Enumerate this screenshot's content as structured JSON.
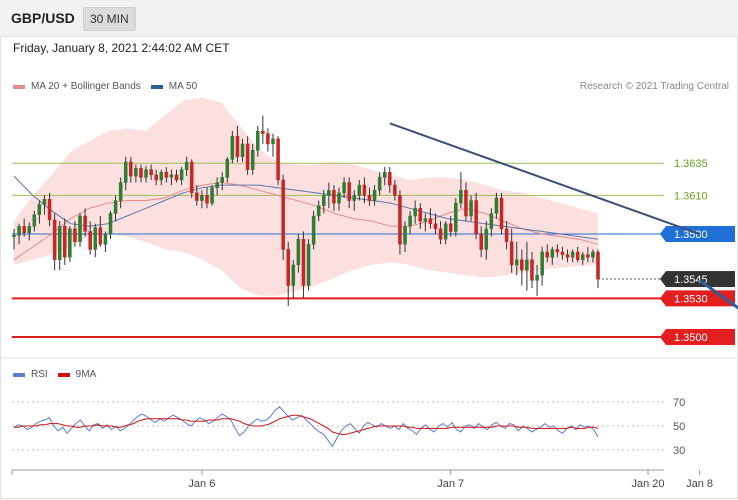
{
  "header": {
    "symbol": "GBP/USD",
    "timeframe": "30 MIN",
    "datetime": "Friday, January 8, 2021 2:44:02 AM CET",
    "copyright": "Research © 2021 Trading Central"
  },
  "legend_price": [
    {
      "label": "MA 20 + Bollinger Bands",
      "color": "#e88a8a"
    },
    {
      "label": "MA 50",
      "color": "#2f5d9b"
    }
  ],
  "legend_rsi": [
    {
      "label": "RSI",
      "color": "#5b7fd6"
    },
    {
      "label": "9MA",
      "color": "#cc1111"
    }
  ],
  "chart_data": [
    {
      "type": "candlestick",
      "panel": "price",
      "ylim": [
        1.3486,
        1.3688
      ],
      "xlim": [
        0,
        140
      ],
      "candles": [
        [
          1.3578,
          1.3584,
          1.3568,
          1.3579
        ],
        [
          1.3579,
          1.3588,
          1.3572,
          1.3586
        ],
        [
          1.3586,
          1.3592,
          1.3578,
          1.3581
        ],
        [
          1.3581,
          1.3589,
          1.3575,
          1.3586
        ],
        [
          1.3586,
          1.3598,
          1.3582,
          1.3595
        ],
        [
          1.3595,
          1.3606,
          1.3588,
          1.3603
        ],
        [
          1.3603,
          1.361,
          1.3595,
          1.3607
        ],
        [
          1.3607,
          1.3612,
          1.3586,
          1.3591
        ],
        [
          1.3591,
          1.3596,
          1.3552,
          1.356
        ],
        [
          1.356,
          1.359,
          1.3552,
          1.3586
        ],
        [
          1.3586,
          1.3592,
          1.3556,
          1.3562
        ],
        [
          1.3562,
          1.3586,
          1.3558,
          1.3584
        ],
        [
          1.3584,
          1.359,
          1.357,
          1.3574
        ],
        [
          1.3574,
          1.3596,
          1.357,
          1.3594
        ],
        [
          1.3594,
          1.36,
          1.3578,
          1.3582
        ],
        [
          1.3582,
          1.359,
          1.3564,
          1.3568
        ],
        [
          1.3568,
          1.3588,
          1.3562,
          1.3585
        ],
        [
          1.3585,
          1.3594,
          1.357,
          1.3572
        ],
        [
          1.3572,
          1.3582,
          1.3566,
          1.358
        ],
        [
          1.358,
          1.3598,
          1.3576,
          1.3596
        ],
        [
          1.3596,
          1.361,
          1.359,
          1.3606
        ],
        [
          1.3606,
          1.3624,
          1.36,
          1.362
        ],
        [
          1.362,
          1.364,
          1.3614,
          1.3636
        ],
        [
          1.3636,
          1.364,
          1.362,
          1.3625
        ],
        [
          1.3625,
          1.3634,
          1.362,
          1.3631
        ],
        [
          1.3631,
          1.3634,
          1.362,
          1.3624
        ],
        [
          1.3624,
          1.3633,
          1.362,
          1.363
        ],
        [
          1.363,
          1.3634,
          1.3622,
          1.3626
        ],
        [
          1.3626,
          1.363,
          1.3618,
          1.3622
        ],
        [
          1.3622,
          1.363,
          1.3618,
          1.3628
        ],
        [
          1.3628,
          1.3632,
          1.362,
          1.3624
        ],
        [
          1.3624,
          1.363,
          1.3618,
          1.3626
        ],
        [
          1.3626,
          1.363,
          1.362,
          1.3622
        ],
        [
          1.3622,
          1.3632,
          1.3618,
          1.363
        ],
        [
          1.363,
          1.364,
          1.3625,
          1.3636
        ],
        [
          1.3636,
          1.3638,
          1.3608,
          1.3612
        ],
        [
          1.3612,
          1.3618,
          1.3602,
          1.3606
        ],
        [
          1.3606,
          1.3614,
          1.36,
          1.361
        ],
        [
          1.361,
          1.3616,
          1.36,
          1.3604
        ],
        [
          1.3604,
          1.3618,
          1.3602,
          1.3616
        ],
        [
          1.3616,
          1.3624,
          1.361,
          1.362
        ],
        [
          1.362,
          1.3628,
          1.3614,
          1.3624
        ],
        [
          1.3624,
          1.364,
          1.362,
          1.3638
        ],
        [
          1.3638,
          1.366,
          1.3635,
          1.3656
        ],
        [
          1.3656,
          1.3664,
          1.3636,
          1.364
        ],
        [
          1.364,
          1.3654,
          1.3636,
          1.365
        ],
        [
          1.365,
          1.3656,
          1.3626,
          1.363
        ],
        [
          1.363,
          1.365,
          1.3626,
          1.3645
        ],
        [
          1.3645,
          1.3664,
          1.364,
          1.366
        ],
        [
          1.366,
          1.3672,
          1.365,
          1.3658
        ],
        [
          1.3658,
          1.3662,
          1.3644,
          1.365
        ],
        [
          1.365,
          1.3658,
          1.364,
          1.3654
        ],
        [
          1.3654,
          1.3656,
          1.3618,
          1.3622
        ],
        [
          1.3622,
          1.3626,
          1.356,
          1.3568
        ],
        [
          1.3568,
          1.3574,
          1.3524,
          1.354
        ],
        [
          1.354,
          1.356,
          1.353,
          1.3556
        ],
        [
          1.3556,
          1.358,
          1.355,
          1.3576
        ],
        [
          1.3576,
          1.3582,
          1.353,
          1.354
        ],
        [
          1.354,
          1.3576,
          1.3536,
          1.3572
        ],
        [
          1.3572,
          1.3598,
          1.3568,
          1.3594
        ],
        [
          1.3594,
          1.3606,
          1.359,
          1.3602
        ],
        [
          1.3602,
          1.3614,
          1.3596,
          1.361
        ],
        [
          1.361,
          1.362,
          1.36,
          1.3614
        ],
        [
          1.3614,
          1.3618,
          1.3598,
          1.3604
        ],
        [
          1.3604,
          1.3616,
          1.3598,
          1.3612
        ],
        [
          1.3612,
          1.3624,
          1.3608,
          1.362
        ],
        [
          1.362,
          1.3624,
          1.36,
          1.3606
        ],
        [
          1.3606,
          1.3614,
          1.3598,
          1.361
        ],
        [
          1.361,
          1.3622,
          1.3606,
          1.3618
        ],
        [
          1.3618,
          1.3624,
          1.3604,
          1.361
        ],
        [
          1.361,
          1.3616,
          1.3602,
          1.3606
        ],
        [
          1.3606,
          1.3618,
          1.3602,
          1.3614
        ],
        [
          1.3614,
          1.3628,
          1.361,
          1.3624
        ],
        [
          1.3624,
          1.3632,
          1.3618,
          1.3628
        ],
        [
          1.3628,
          1.3632,
          1.3612,
          1.3618
        ],
        [
          1.3618,
          1.3622,
          1.3606,
          1.361
        ],
        [
          1.361,
          1.3614,
          1.3564,
          1.3572
        ],
        [
          1.3572,
          1.359,
          1.3566,
          1.3586
        ],
        [
          1.3586,
          1.3598,
          1.358,
          1.3594
        ],
        [
          1.3594,
          1.3606,
          1.3588,
          1.36
        ],
        [
          1.36,
          1.3604,
          1.3584,
          1.359
        ],
        [
          1.359,
          1.3596,
          1.3582,
          1.3592
        ],
        [
          1.3592,
          1.36,
          1.3584,
          1.3588
        ],
        [
          1.3588,
          1.3596,
          1.358,
          1.3584
        ],
        [
          1.3584,
          1.359,
          1.3572,
          1.3576
        ],
        [
          1.3576,
          1.359,
          1.3572,
          1.3588
        ],
        [
          1.3588,
          1.3594,
          1.3578,
          1.3582
        ],
        [
          1.3582,
          1.3608,
          1.3578,
          1.3604
        ],
        [
          1.3604,
          1.3628,
          1.36,
          1.3614
        ],
        [
          1.3614,
          1.362,
          1.359,
          1.3594
        ],
        [
          1.3594,
          1.361,
          1.359,
          1.3606
        ],
        [
          1.3606,
          1.3612,
          1.3576,
          1.358
        ],
        [
          1.358,
          1.3586,
          1.3562,
          1.3568
        ],
        [
          1.3568,
          1.359,
          1.356,
          1.3584
        ],
        [
          1.3584,
          1.36,
          1.3578,
          1.3596
        ],
        [
          1.3596,
          1.3612,
          1.3592,
          1.3608
        ],
        [
          1.3608,
          1.3612,
          1.358,
          1.3584
        ],
        [
          1.3584,
          1.359,
          1.3568,
          1.3574
        ],
        [
          1.3574,
          1.3584,
          1.355,
          1.3556
        ],
        [
          1.3556,
          1.3574,
          1.3548,
          1.356
        ],
        [
          1.356,
          1.3568,
          1.354,
          1.3552
        ],
        [
          1.3552,
          1.3574,
          1.3536,
          1.356
        ],
        [
          1.356,
          1.3566,
          1.3538,
          1.3544
        ],
        [
          1.3544,
          1.3556,
          1.3532,
          1.3548
        ],
        [
          1.3548,
          1.357,
          1.354,
          1.3566
        ],
        [
          1.3566,
          1.3572,
          1.3558,
          1.3562
        ],
        [
          1.3562,
          1.357,
          1.3556,
          1.3568
        ],
        [
          1.3568,
          1.3572,
          1.3562,
          1.3566
        ],
        [
          1.3566,
          1.357,
          1.356,
          1.3564
        ],
        [
          1.3564,
          1.3568,
          1.3558,
          1.3562
        ],
        [
          1.3562,
          1.3568,
          1.3558,
          1.3566
        ],
        [
          1.3566,
          1.357,
          1.3558,
          1.356
        ],
        [
          1.356,
          1.3566,
          1.3556,
          1.3564
        ],
        [
          1.3564,
          1.357,
          1.3558,
          1.3562
        ],
        [
          1.3562,
          1.3568,
          1.3558,
          1.3566
        ],
        [
          1.3566,
          1.3568,
          1.3538,
          1.3545
        ]
      ],
      "ma20": [
        1.356,
        1.357,
        1.358,
        1.3592,
        1.36,
        1.3604,
        1.3606,
        1.3606,
        1.3608,
        1.3614,
        1.3618,
        1.362,
        1.3618,
        1.3614,
        1.361,
        1.3606,
        1.3602,
        1.3596,
        1.3592,
        1.359,
        1.3586,
        1.3586,
        1.359,
        1.3596,
        1.36,
        1.3596,
        1.359,
        1.3584,
        1.358,
        1.3578,
        1.3576,
        1.3572
      ],
      "ma50": [
        1.3625,
        1.361,
        1.3598,
        1.3588,
        1.3586,
        1.3588,
        1.3594,
        1.36,
        1.3606,
        1.3612,
        1.3616,
        1.3618,
        1.3618,
        1.3618,
        1.3616,
        1.3614,
        1.3612,
        1.361,
        1.3608,
        1.3606,
        1.3604,
        1.36,
        1.3596,
        1.3592,
        1.359,
        1.3588,
        1.3586,
        1.3584,
        1.3582,
        1.358,
        1.3578,
        1.3576
      ],
      "bb_upper": [
        1.359,
        1.361,
        1.3626,
        1.3644,
        1.3652,
        1.366,
        1.3662,
        1.366,
        1.3672,
        1.3684,
        1.3686,
        1.3682,
        1.3664,
        1.3646,
        1.3636,
        1.3634,
        1.3634,
        1.3636,
        1.3634,
        1.363,
        1.3626,
        1.3622,
        1.3624,
        1.3624,
        1.3622,
        1.3618,
        1.3614,
        1.3612,
        1.3608,
        1.3604,
        1.36,
        1.3596
      ],
      "bb_lower": [
        1.3556,
        1.356,
        1.3564,
        1.357,
        1.3578,
        1.358,
        1.3578,
        1.3574,
        1.3568,
        1.3566,
        1.356,
        1.3552,
        1.3538,
        1.3532,
        1.3532,
        1.3536,
        1.354,
        1.3546,
        1.3552,
        1.3556,
        1.3558,
        1.3556,
        1.3552,
        1.355,
        1.3548,
        1.3546,
        1.3548,
        1.355,
        1.3552,
        1.3554,
        1.3555,
        1.3556
      ],
      "horizontal_levels": [
        {
          "value": 1.3635,
          "label": "1.3635",
          "style": "support-thin",
          "color": "#9bc05a"
        },
        {
          "value": 1.361,
          "label": "1.3610",
          "style": "support-thin",
          "color": "#9bc05a"
        },
        {
          "value": 1.358,
          "label": "1.3580",
          "style": "pivot",
          "color": "#1f6fd6"
        },
        {
          "value": 1.3545,
          "label": "1.3545",
          "style": "last-price",
          "color": "#333333"
        },
        {
          "value": 1.353,
          "label": "1.3530",
          "style": "target",
          "color": "#e31e1e"
        },
        {
          "value": 1.35,
          "label": "1.3500",
          "style": "target",
          "color": "#e31e1e"
        }
      ],
      "trendline": {
        "from": [
          74,
          1.3666
        ],
        "to": [
          135,
          1.358
        ]
      },
      "arrow": {
        "from": [
          135,
          1.3544
        ],
        "to": [
          149,
          1.3502
        ]
      }
    },
    {
      "type": "line",
      "panel": "rsi",
      "ylim": [
        20,
        80
      ],
      "yticks": [
        30,
        50,
        70
      ],
      "rsi": [
        49,
        51,
        50,
        47,
        49,
        52,
        54,
        55,
        57,
        50,
        46,
        49,
        44,
        48,
        52,
        55,
        50,
        46,
        51,
        52,
        48,
        51,
        47,
        50,
        46,
        48,
        51,
        55,
        58,
        60,
        58,
        55,
        53,
        56,
        54,
        57,
        59,
        57,
        55,
        52,
        50,
        54,
        57,
        55,
        52,
        54,
        57,
        60,
        58,
        55,
        48,
        42,
        45,
        50,
        53,
        56,
        54,
        55,
        58,
        63,
        66,
        62,
        58,
        55,
        57,
        59,
        55,
        52,
        48,
        45,
        43,
        38,
        33,
        40,
        46,
        50,
        52,
        48,
        44,
        50,
        53,
        51,
        49,
        52,
        50,
        48,
        50,
        47,
        52,
        48,
        46,
        43,
        48,
        51,
        47,
        45,
        50,
        52,
        49,
        53,
        47,
        45,
        50,
        51,
        48,
        52,
        49,
        47,
        51,
        53,
        50,
        48,
        52,
        51,
        46,
        50,
        48,
        45,
        47,
        49,
        52,
        49,
        50,
        46,
        44,
        48,
        50,
        47,
        51,
        49,
        50,
        47,
        41
      ],
      "ma9": [
        49,
        49,
        50,
        50,
        50,
        50,
        51,
        51,
        52,
        52,
        52,
        51,
        50,
        50,
        49,
        49,
        50,
        50,
        50,
        51,
        50,
        50,
        50,
        49,
        49,
        50,
        51,
        52,
        54,
        55,
        56,
        56,
        56,
        56,
        56,
        56,
        56,
        56,
        55,
        55,
        54,
        54,
        54,
        54,
        55,
        55,
        55,
        56,
        56,
        56,
        55,
        54,
        52,
        51,
        50,
        50,
        50,
        51,
        52,
        54,
        56,
        57,
        58,
        59,
        59,
        58,
        57,
        56,
        54,
        52,
        50,
        48,
        45,
        44,
        43,
        43,
        44,
        45,
        46,
        47,
        48,
        49,
        50,
        50,
        50,
        50,
        50,
        50,
        50,
        49,
        49,
        48,
        48,
        48,
        48,
        48,
        48,
        48,
        48,
        49,
        49,
        49,
        49,
        49,
        49,
        49,
        49,
        49,
        49,
        50,
        50,
        50,
        50,
        50,
        49,
        49,
        49,
        48,
        48,
        48,
        48,
        48,
        48,
        48,
        48,
        48,
        49,
        48,
        48,
        48,
        49,
        49,
        48
      ]
    }
  ],
  "x_axis": {
    "ticks": [
      {
        "label": "Jan 6",
        "index": 37
      },
      {
        "label": "Jan 7",
        "index": 86
      },
      {
        "label": "Jan 8",
        "index": 135
      },
      {
        "label": "Jan 20",
        "index": 150
      }
    ]
  }
}
